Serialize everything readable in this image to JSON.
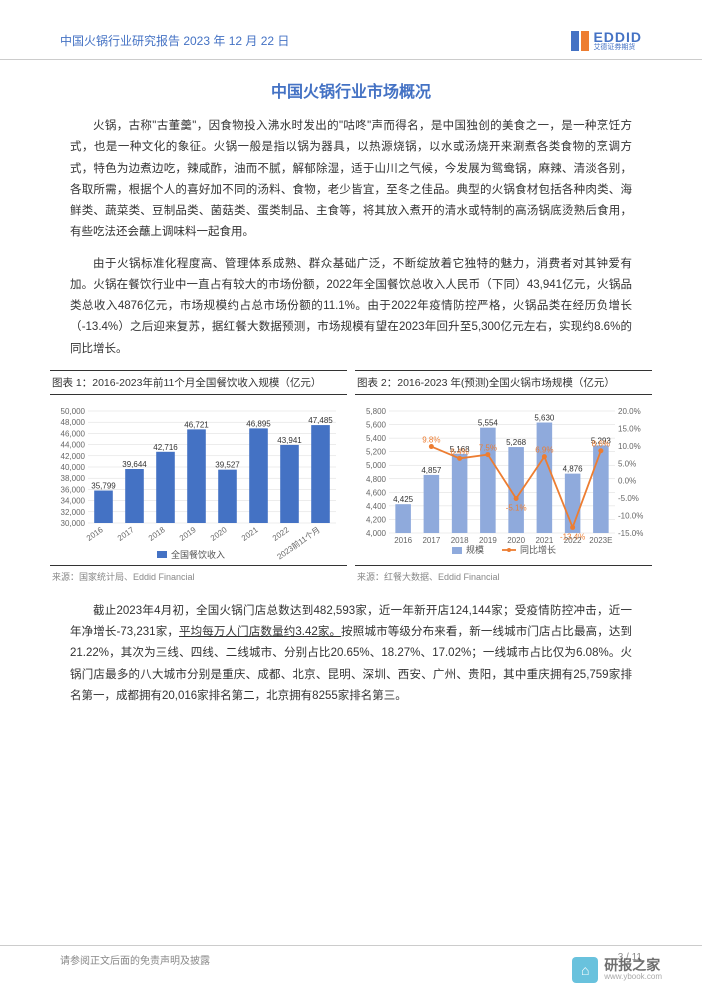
{
  "header": {
    "title": "中国火锅行业研究报告 2023 年 12 月 22 日",
    "logo_main": "EDDID",
    "logo_sub": "艾德证券期货"
  },
  "section_title": "中国火锅行业市场概况",
  "paragraphs": {
    "p1": "火锅，古称\"古董羹\"，因食物投入沸水时发出的\"咕咚\"声而得名，是中国独创的美食之一，是一种烹饪方式，也是一种文化的象征。火锅一般是指以锅为器具，以热源烧锅，以水或汤烧开来涮煮各类食物的烹调方式，特色为边煮边吃，辣咸酢，油而不腻，解郁除湿，适于山川之气候，今发展为鸳鸯锅，麻辣、清淡各别，各取所需，根据个人的喜好加不同的汤料、食物，老少皆宜，至冬之佳品。典型的火锅食材包括各种肉类、海鲜类、蔬菜类、豆制品类、菌菇类、蛋类制品、主食等，将其放入煮开的清水或特制的高汤锅底烫熟后食用，有些吃法还会蘸上调味料一起食用。",
    "p2": "由于火锅标准化程度高、管理体系成熟、群众基础广泛，不断绽放着它独特的魅力，消费者对其钟爱有加。火锅在餐饮行业中一直占有较大的市场份额，2022年全国餐饮总收入人民币（下同）43,941亿元，火锅品类总收入4876亿元，市场规模约占总市场份额的11.1%。由于2022年疫情防控严格，火锅品类在经历负增长（-13.4%）之后迎来复苏，据红餐大数据预测，市场规模有望在2023年回升至5,300亿元左右，实现约8.6%的同比增长。",
    "p3_a": "截止2023年4月初，全国火锅门店总数达到482,593家，近一年新开店124,144家；受疫情防控冲击，近一年净增长-73,231家，",
    "p3_u": "平均每万人门店数量约3.42家。",
    "p3_b": "按照城市等级分布来看，新一线城市门店占比最高，达到21.22%，其次为三线、四线、二线城市、分别占比20.65%、18.27%、17.02%；一线城市占比仅为6.08%。火锅门店最多的八大城市分别是重庆、成都、北京、昆明、深圳、西安、广州、贵阳，其中重庆拥有25,759家排名第一，成都拥有20,016家排名第二，北京拥有8255家排名第三。"
  },
  "chart1": {
    "title": "图表 1：2016-2023年前11个月全国餐饮收入规模（亿元）",
    "type": "bar",
    "categories": [
      "2016",
      "2017",
      "2018",
      "2019",
      "2020",
      "2021",
      "2022",
      "2023前11个月"
    ],
    "values": [
      35799,
      39644,
      42716,
      46721,
      39527,
      46895,
      43941,
      47485
    ],
    "bar_color": "#4472c4",
    "ylim": [
      30000,
      50000
    ],
    "ytick_step": 2000,
    "label_fontsize": 8,
    "value_fontsize": 8,
    "background": "#ffffff",
    "grid_color": "#d9d9d9",
    "legend_label": "全国餐饮收入",
    "source": "来源：国家统计局、Eddid Financial"
  },
  "chart2": {
    "title": "图表 2：2016-2023 年(预测)全国火锅市场规模（亿元）",
    "type": "bar+line",
    "categories": [
      "2016",
      "2017",
      "2018",
      "2019",
      "2020",
      "2021",
      "2022",
      "2023E"
    ],
    "bar_values": [
      4425,
      4857,
      5168,
      5554,
      5268,
      5630,
      4876,
      5293
    ],
    "bar_color": "#8faadc",
    "line_values": [
      null,
      9.8,
      6.4,
      7.5,
      -5.1,
      6.9,
      -13.4,
      8.6
    ],
    "line_color": "#ed7d31",
    "ylim_left": [
      4000,
      5800
    ],
    "ytick_left_step": 200,
    "ylim_right": [
      -15.0,
      20.0
    ],
    "ytick_right_step": 5.0,
    "label_fontsize": 8,
    "value_fontsize": 8,
    "background": "#ffffff",
    "grid_color": "#d9d9d9",
    "legend_bar": "规模",
    "legend_line": "同比增长",
    "source": "来源：红餐大数据、Eddid Financial"
  },
  "footer": {
    "disclaimer": "请参阅正文后面的免责声明及披露",
    "page": "3 / 11"
  },
  "watermark": {
    "main": "研报之家",
    "sub": "www.ybook.com",
    "icon_glyph": "⌂"
  }
}
